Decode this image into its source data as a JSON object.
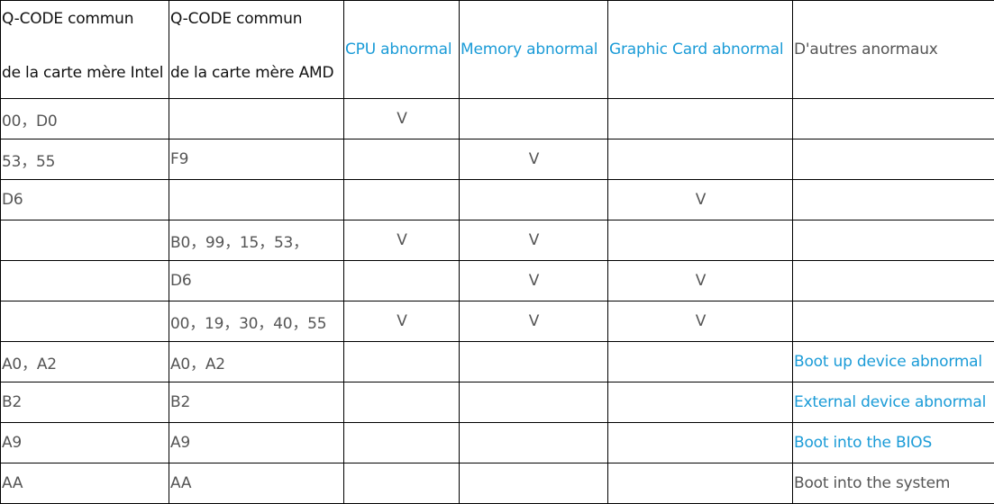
{
  "table": {
    "headers": [
      {
        "line1": "Q-CODE commun",
        "line2": "de la carte mère Intel"
      },
      {
        "line1": "Q-CODE commun",
        "line2": "de la carte mère AMD"
      },
      {
        "label": "CPU abnormal"
      },
      {
        "label": "Memory abnormal"
      },
      {
        "label": "Graphic Card abnormal"
      },
      {
        "label": "D'autres anormaux"
      }
    ],
    "rows": [
      {
        "intel": "00，D0",
        "amd": "",
        "cpu": "V",
        "mem": "",
        "gpu": "",
        "other": ""
      },
      {
        "intel": "53，55",
        "amd": "F9",
        "cpu": "",
        "mem": "V",
        "gpu": "",
        "other": ""
      },
      {
        "intel": "D6",
        "amd": "",
        "cpu": "",
        "mem": "",
        "gpu": "V",
        "other": ""
      },
      {
        "intel": "",
        "amd": "B0，99，15，53，",
        "cpu": "V",
        "mem": "V",
        "gpu": "",
        "other": ""
      },
      {
        "intel": "",
        "amd": "D6",
        "cpu": "",
        "mem": "V",
        "gpu": "V",
        "other": ""
      },
      {
        "intel": "",
        "amd": "00，19，30，40，55",
        "cpu": "V",
        "mem": "V",
        "gpu": "V",
        "other": ""
      },
      {
        "intel": "A0，A2",
        "amd": "A0，A2",
        "cpu": "",
        "mem": "",
        "gpu": "",
        "other": "Boot up device abnormal",
        "other_link": true
      },
      {
        "intel": "B2",
        "amd": "B2",
        "cpu": "",
        "mem": "",
        "gpu": "",
        "other": "External device abnormal",
        "other_link": true
      },
      {
        "intel": "A9",
        "amd": "A9",
        "cpu": "",
        "mem": "",
        "gpu": "",
        "other": "Boot into the BIOS",
        "other_link": true
      },
      {
        "intel": "AA",
        "amd": "AA",
        "cpu": "",
        "mem": "",
        "gpu": "",
        "other": "Boot into the system",
        "other_link": false
      }
    ]
  },
  "colors": {
    "link": "#1a9bd7",
    "text": "#555555",
    "border": "#000000"
  }
}
